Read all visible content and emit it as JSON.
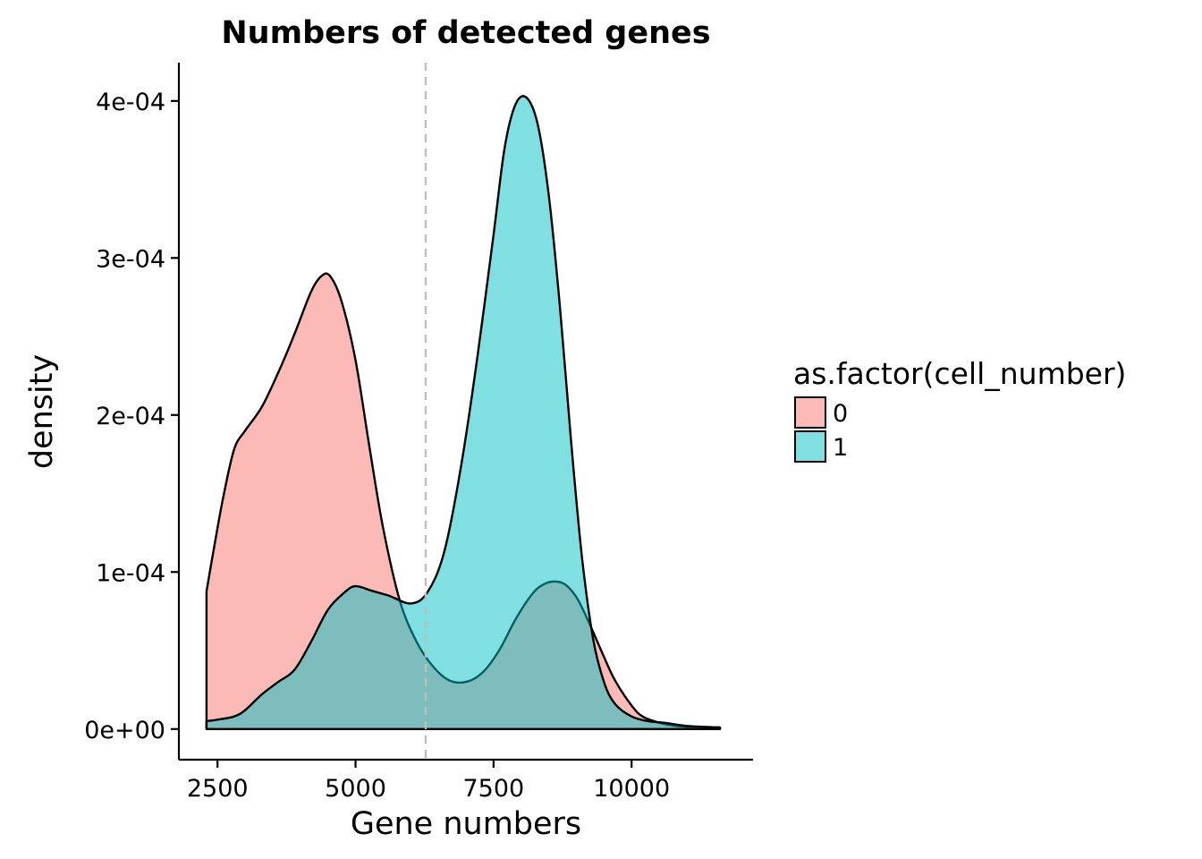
{
  "chart_data": {
    "type": "area",
    "title": "Numbers of detected genes",
    "xlabel": "Gene numbers",
    "ylabel": "density",
    "xlim": [
      1800,
      12200
    ],
    "ylim": [
      -1.95e-05,
      0.0004244
    ],
    "x_ticks": [
      2500,
      5000,
      7500,
      10000
    ],
    "x_tick_labels": [
      "2500",
      "5000",
      "7500",
      "10000"
    ],
    "y_ticks": [
      0,
      0.0001,
      0.0002,
      0.0003,
      0.0004
    ],
    "y_tick_labels": [
      "0e+00",
      "1e-04",
      "2e-04",
      "3e-04",
      "4e-04"
    ],
    "vline": {
      "x": 6270,
      "color": "#bdbdbd",
      "style": "dashed"
    },
    "grid": false,
    "legend": {
      "title": "as.factor(cell_number)",
      "position": "right"
    },
    "series": [
      {
        "name": "0",
        "color": "#F8766D",
        "fill_opacity": 0.5,
        "x": [
          2300,
          2450,
          2600,
          2800,
          3000,
          3300,
          3600,
          3900,
          4200,
          4400,
          4550,
          4750,
          5000,
          5250,
          5500,
          5800,
          6100,
          6400,
          6700,
          7000,
          7300,
          7600,
          7900,
          8200,
          8400,
          8600,
          8800,
          9000,
          9200,
          9500,
          9700,
          10000,
          10200,
          10500,
          10800,
          11200,
          11600
        ],
        "y": [
          8.77e-05,
          0.000118,
          0.000147,
          0.000178,
          0.00019,
          0.000205,
          0.000227,
          0.000252,
          0.000279,
          0.000289,
          0.000288,
          0.000272,
          0.000235,
          0.00018,
          0.000128,
          8.2e-05,
          5.6e-05,
          4e-05,
          3.1e-05,
          3e-05,
          3.6e-05,
          5e-05,
          7e-05,
          8.6e-05,
          9.2e-05,
          9.4e-05,
          9.2e-05,
          8.4e-05,
          7e-05,
          4.6e-05,
          3.1e-05,
          1.5e-05,
          8e-06,
          4e-06,
          2e-06,
          1e-06,
          1e-06
        ]
      },
      {
        "name": "1",
        "color": "#00BFC4",
        "fill_opacity": 0.5,
        "x": [
          2300,
          2500,
          2800,
          3000,
          3300,
          3600,
          3900,
          4200,
          4500,
          4800,
          5000,
          5300,
          5600,
          6000,
          6300,
          6600,
          6900,
          7200,
          7500,
          7700,
          7900,
          8100,
          8300,
          8500,
          8700,
          8900,
          9100,
          9300,
          9500,
          9700,
          10000,
          10300,
          10600,
          11000,
          11600
        ],
        "y": [
          5e-06,
          6e-06,
          8e-06,
          1.2e-05,
          2.2e-05,
          3e-05,
          3.8e-05,
          5.6e-05,
          7.6e-05,
          8.7e-05,
          9.1e-05,
          8.8e-05,
          8.5e-05,
          8e-05,
          8.7e-05,
          0.000112,
          0.000165,
          0.000235,
          0.000315,
          0.00037,
          0.000398,
          0.000402,
          0.000385,
          0.00034,
          0.00027,
          0.000185,
          0.00011,
          5.8e-05,
          3e-05,
          1.6e-05,
          8e-06,
          5e-06,
          4e-06,
          2e-06,
          1e-06
        ]
      }
    ]
  }
}
